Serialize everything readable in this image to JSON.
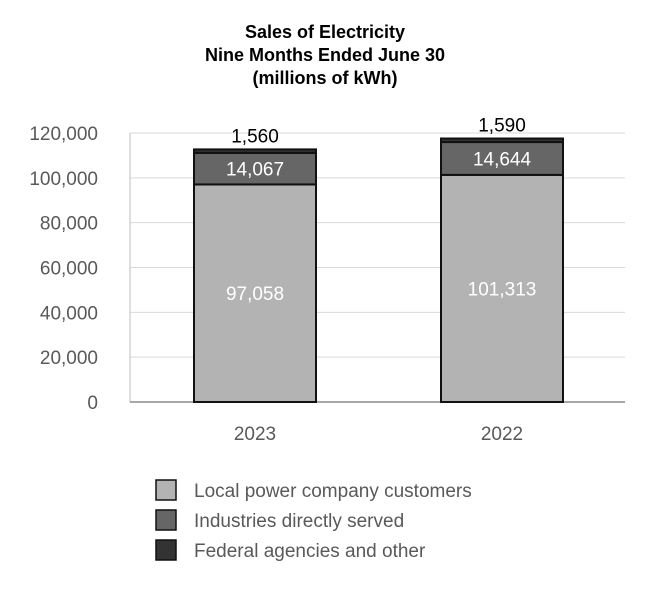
{
  "chart_data": {
    "type": "bar",
    "stacked": true,
    "title": [
      "Sales of Electricity",
      "Nine Months Ended June 30",
      "(millions of kWh)"
    ],
    "categories": [
      "2023",
      "2022"
    ],
    "series": [
      {
        "name": "Local power company customers",
        "values": [
          97058,
          101313
        ],
        "color": "#b3b3b3",
        "labels": [
          "97,058",
          "101,313"
        ],
        "label_color": "#ffffff"
      },
      {
        "name": "Industries directly served",
        "values": [
          14067,
          14644
        ],
        "color": "#666666",
        "labels": [
          "14,067",
          "14,644"
        ],
        "label_color": "#ffffff"
      },
      {
        "name": "Federal agencies and other",
        "values": [
          1560,
          1590
        ],
        "color": "#333333",
        "labels": [
          "1,560",
          "1,590"
        ],
        "label_color": "#000000"
      }
    ],
    "ylim": [
      0,
      120000
    ],
    "yticks": [
      0,
      20000,
      40000,
      60000,
      80000,
      100000,
      120000
    ],
    "ytick_labels": [
      "0",
      "20,000",
      "40,000",
      "60,000",
      "80,000",
      "100,000",
      "120,000"
    ],
    "grid": true,
    "legend": "bottom"
  }
}
